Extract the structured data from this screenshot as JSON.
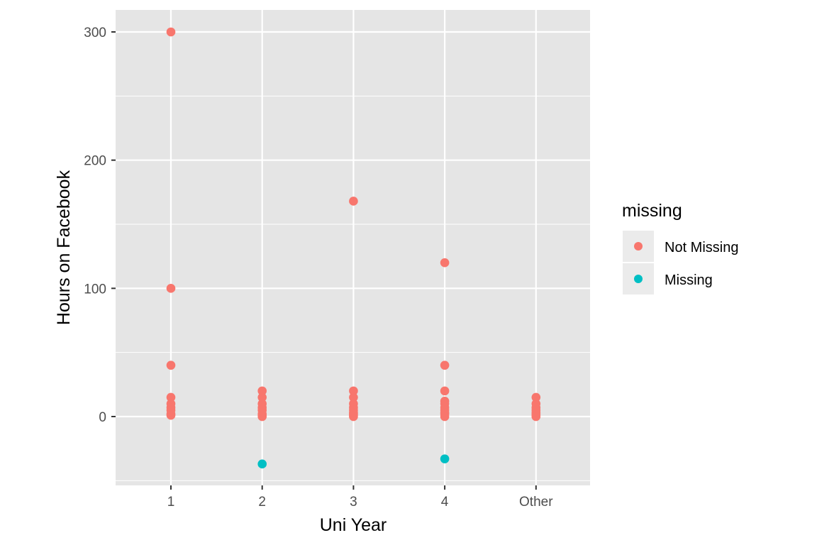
{
  "chart_data": {
    "type": "scatter",
    "title": "",
    "xlabel": "Uni Year",
    "ylabel": "Hours on Facebook",
    "categories": [
      "1",
      "2",
      "3",
      "4",
      "Other"
    ],
    "y_ticks": [
      0,
      100,
      200,
      300
    ],
    "ylim": [
      -52,
      317
    ],
    "grid": true,
    "panel_background": "#e5e5e5",
    "legend": {
      "title": "missing",
      "placement": "right",
      "entries": [
        {
          "label": "Not Missing",
          "color": "#f8766d"
        },
        {
          "label": "Missing",
          "color": "#00bfc4"
        }
      ]
    },
    "series": [
      {
        "name": "Not Missing",
        "color": "#f8766d",
        "points": [
          {
            "x": "1",
            "y": 300
          },
          {
            "x": "1",
            "y": 100
          },
          {
            "x": "1",
            "y": 40
          },
          {
            "x": "1",
            "y": 15
          },
          {
            "x": "1",
            "y": 10
          },
          {
            "x": "1",
            "y": 7
          },
          {
            "x": "1",
            "y": 5
          },
          {
            "x": "1",
            "y": 2
          },
          {
            "x": "1",
            "y": 1
          },
          {
            "x": "2",
            "y": 20
          },
          {
            "x": "2",
            "y": 15
          },
          {
            "x": "2",
            "y": 10
          },
          {
            "x": "2",
            "y": 7
          },
          {
            "x": "2",
            "y": 5
          },
          {
            "x": "2",
            "y": 2
          },
          {
            "x": "2",
            "y": 1
          },
          {
            "x": "2",
            "y": 0
          },
          {
            "x": "3",
            "y": 168
          },
          {
            "x": "3",
            "y": 20
          },
          {
            "x": "3",
            "y": 15
          },
          {
            "x": "3",
            "y": 10
          },
          {
            "x": "3",
            "y": 7
          },
          {
            "x": "3",
            "y": 5
          },
          {
            "x": "3",
            "y": 3
          },
          {
            "x": "3",
            "y": 2
          },
          {
            "x": "3",
            "y": 1
          },
          {
            "x": "3",
            "y": 0
          },
          {
            "x": "4",
            "y": 120
          },
          {
            "x": "4",
            "y": 40
          },
          {
            "x": "4",
            "y": 20
          },
          {
            "x": "4",
            "y": 12
          },
          {
            "x": "4",
            "y": 10
          },
          {
            "x": "4",
            "y": 7
          },
          {
            "x": "4",
            "y": 5
          },
          {
            "x": "4",
            "y": 3
          },
          {
            "x": "4",
            "y": 2
          },
          {
            "x": "4",
            "y": 0
          },
          {
            "x": "Other",
            "y": 15
          },
          {
            "x": "Other",
            "y": 10
          },
          {
            "x": "Other",
            "y": 7
          },
          {
            "x": "Other",
            "y": 5
          },
          {
            "x": "Other",
            "y": 3
          },
          {
            "x": "Other",
            "y": 2
          },
          {
            "x": "Other",
            "y": 1
          },
          {
            "x": "Other",
            "y": 0
          }
        ]
      },
      {
        "name": "Missing",
        "color": "#00bfc4",
        "points": [
          {
            "x": "2",
            "y": -37
          },
          {
            "x": "4",
            "y": -33
          }
        ]
      }
    ]
  }
}
